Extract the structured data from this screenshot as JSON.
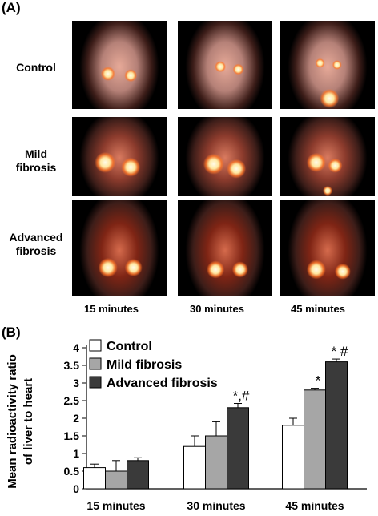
{
  "panel_a": {
    "label": "(A)",
    "rows": [
      "Control",
      "Mild fibrosis",
      "Advanced fibrosis"
    ],
    "columns": [
      "15 minutes",
      "30 minutes",
      "45 minutes"
    ]
  },
  "panel_b": {
    "label": "(B)"
  },
  "colors": {
    "control": "#ffffff",
    "mild": "#a6a6a6",
    "advanced": "#3a3a3a",
    "scan_background": "#000000",
    "scan_tissue": "#8a1a08",
    "scan_hotspot": "#ffeebb"
  },
  "chart_data": {
    "type": "bar",
    "ylabel": "Mean radioactivity ratio of liver to heart",
    "xlabel": "",
    "ylim": [
      0,
      4
    ],
    "yticks": [
      "0",
      "0.5",
      "1",
      "1.5",
      "2",
      "2.5",
      "3",
      "3.5",
      "4"
    ],
    "categories": [
      "15 minutes",
      "30 minutes",
      "45 minutes"
    ],
    "legend_position": "top-left",
    "series": [
      {
        "name": "Control",
        "values": [
          0.6,
          1.2,
          1.8
        ],
        "errors": [
          0.1,
          0.3,
          0.2
        ]
      },
      {
        "name": "Mild fibrosis",
        "values": [
          0.5,
          1.5,
          2.8
        ],
        "errors": [
          0.3,
          0.4,
          0.05
        ]
      },
      {
        "name": "Advanced fibrosis",
        "values": [
          0.8,
          2.3,
          3.6
        ],
        "errors": [
          0.08,
          0.12,
          0.08
        ]
      }
    ],
    "annotations": [
      {
        "category": 1,
        "series": 2,
        "text": "*,#"
      },
      {
        "category": 2,
        "series": 1,
        "text": "*"
      },
      {
        "category": 2,
        "series": 2,
        "text": "* #"
      }
    ]
  }
}
